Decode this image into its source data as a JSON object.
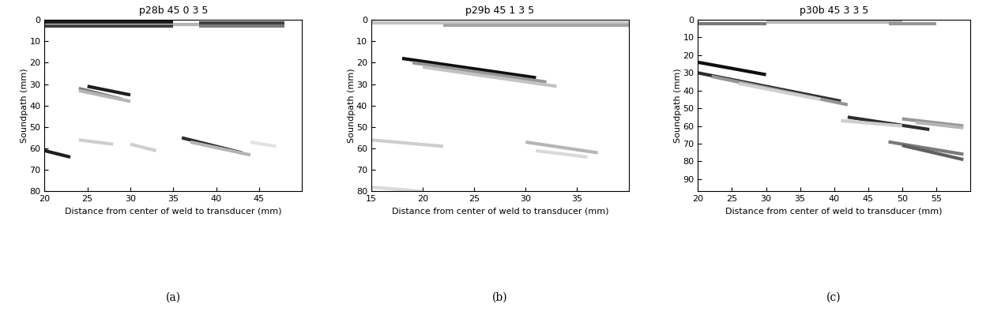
{
  "chart_data": [
    {
      "type": "line",
      "title": "p28b 45 0 3 5",
      "caption": "(a)",
      "x_label": "Distance from center of weld to transducer (mm)",
      "y_label": "Soundpath (mm)",
      "xlim": [
        20,
        50
      ],
      "ylim": [
        80,
        0
      ],
      "xticks": [
        20,
        25,
        30,
        35,
        40,
        45
      ],
      "yticks": [
        0,
        10,
        20,
        30,
        40,
        50,
        60,
        70,
        80
      ],
      "color": "Greys",
      "segments": [
        {
          "x": [
            20,
            35
          ],
          "y": [
            1,
            1
          ],
          "level": 0.9
        },
        {
          "x": [
            20,
            35
          ],
          "y": [
            3,
            3
          ],
          "level": 0.8
        },
        {
          "x": [
            35,
            38
          ],
          "y": [
            2,
            2
          ],
          "level": 0.4
        },
        {
          "x": [
            38,
            48
          ],
          "y": [
            1.5,
            1.5
          ],
          "level": 0.8
        },
        {
          "x": [
            38,
            48
          ],
          "y": [
            3,
            3
          ],
          "level": 0.6
        },
        {
          "x": [
            25,
            30
          ],
          "y": [
            31,
            35
          ],
          "level": 0.9
        },
        {
          "x": [
            24,
            29
          ],
          "y": [
            32,
            37
          ],
          "level": 0.6
        },
        {
          "x": [
            24,
            30
          ],
          "y": [
            33,
            38
          ],
          "level": 0.4
        },
        {
          "x": [
            20,
            23
          ],
          "y": [
            61,
            64
          ],
          "level": 0.9
        },
        {
          "x": [
            36,
            43
          ],
          "y": [
            55,
            62
          ],
          "level": 0.85
        },
        {
          "x": [
            37,
            44
          ],
          "y": [
            57,
            63
          ],
          "level": 0.4
        },
        {
          "x": [
            24,
            28
          ],
          "y": [
            56,
            58
          ],
          "level": 0.3
        },
        {
          "x": [
            30,
            33
          ],
          "y": [
            58,
            61
          ],
          "level": 0.3
        },
        {
          "x": [
            44,
            47
          ],
          "y": [
            57,
            59
          ],
          "level": 0.2
        }
      ]
    },
    {
      "type": "line",
      "title": "p29b 45 1 3 5",
      "caption": "(b)",
      "x_label": "Distance from center of weld to transducer (mm)",
      "y_label": "Soundpath (mm)",
      "xlim": [
        15,
        40
      ],
      "ylim": [
        80,
        0
      ],
      "xticks": [
        15,
        20,
        25,
        30,
        35
      ],
      "yticks": [
        0,
        10,
        20,
        30,
        40,
        50,
        60,
        70,
        80
      ],
      "color": "Greys",
      "segments": [
        {
          "x": [
            15,
            40
          ],
          "y": [
            1.5,
            1.5
          ],
          "level": 0.35
        },
        {
          "x": [
            22,
            40
          ],
          "y": [
            2.5,
            2.5
          ],
          "level": 0.45
        },
        {
          "x": [
            18,
            31
          ],
          "y": [
            18,
            27
          ],
          "level": 0.95
        },
        {
          "x": [
            19,
            32
          ],
          "y": [
            20,
            29
          ],
          "level": 0.5
        },
        {
          "x": [
            20,
            33
          ],
          "y": [
            22,
            31
          ],
          "level": 0.35
        },
        {
          "x": [
            15,
            22
          ],
          "y": [
            56,
            59
          ],
          "level": 0.3
        },
        {
          "x": [
            30,
            37
          ],
          "y": [
            57,
            62
          ],
          "level": 0.4
        },
        {
          "x": [
            31,
            36
          ],
          "y": [
            61,
            64
          ],
          "level": 0.25
        },
        {
          "x": [
            15,
            20
          ],
          "y": [
            78,
            80
          ],
          "level": 0.25
        }
      ]
    },
    {
      "type": "line",
      "title": "p30b 45 3 3 5",
      "caption": "(c)",
      "x_label": "Distance from center of weld to transducer (mm)",
      "y_label": "Soundpath (mm)",
      "xlim": [
        20,
        60
      ],
      "ylim": [
        97,
        0
      ],
      "xticks": [
        20,
        25,
        30,
        35,
        40,
        45,
        50,
        55
      ],
      "yticks": [
        0,
        10,
        20,
        30,
        40,
        50,
        60,
        70,
        80,
        90
      ],
      "color": "Greys",
      "segments": [
        {
          "x": [
            20,
            30
          ],
          "y": [
            2,
            2
          ],
          "level": 0.6
        },
        {
          "x": [
            30,
            50
          ],
          "y": [
            1.5,
            1.5
          ],
          "level": 0.4
        },
        {
          "x": [
            48,
            55
          ],
          "y": [
            2,
            2
          ],
          "level": 0.5
        },
        {
          "x": [
            20,
            30
          ],
          "y": [
            24,
            31
          ],
          "level": 0.95
        },
        {
          "x": [
            20,
            41
          ],
          "y": [
            30,
            46
          ],
          "level": 0.85
        },
        {
          "x": [
            22,
            42
          ],
          "y": [
            32,
            48
          ],
          "level": 0.5
        },
        {
          "x": [
            26,
            38
          ],
          "y": [
            36,
            45
          ],
          "level": 0.3
        },
        {
          "x": [
            42,
            54
          ],
          "y": [
            55,
            62
          ],
          "level": 0.85
        },
        {
          "x": [
            41,
            50
          ],
          "y": [
            57,
            60
          ],
          "level": 0.3
        },
        {
          "x": [
            50,
            59
          ],
          "y": [
            56,
            60
          ],
          "level": 0.5
        },
        {
          "x": [
            52,
            59
          ],
          "y": [
            58,
            61
          ],
          "level": 0.4
        },
        {
          "x": [
            48,
            59
          ],
          "y": [
            69,
            76
          ],
          "level": 0.6
        },
        {
          "x": [
            50,
            59
          ],
          "y": [
            71,
            79
          ],
          "level": 0.7
        }
      ]
    }
  ]
}
